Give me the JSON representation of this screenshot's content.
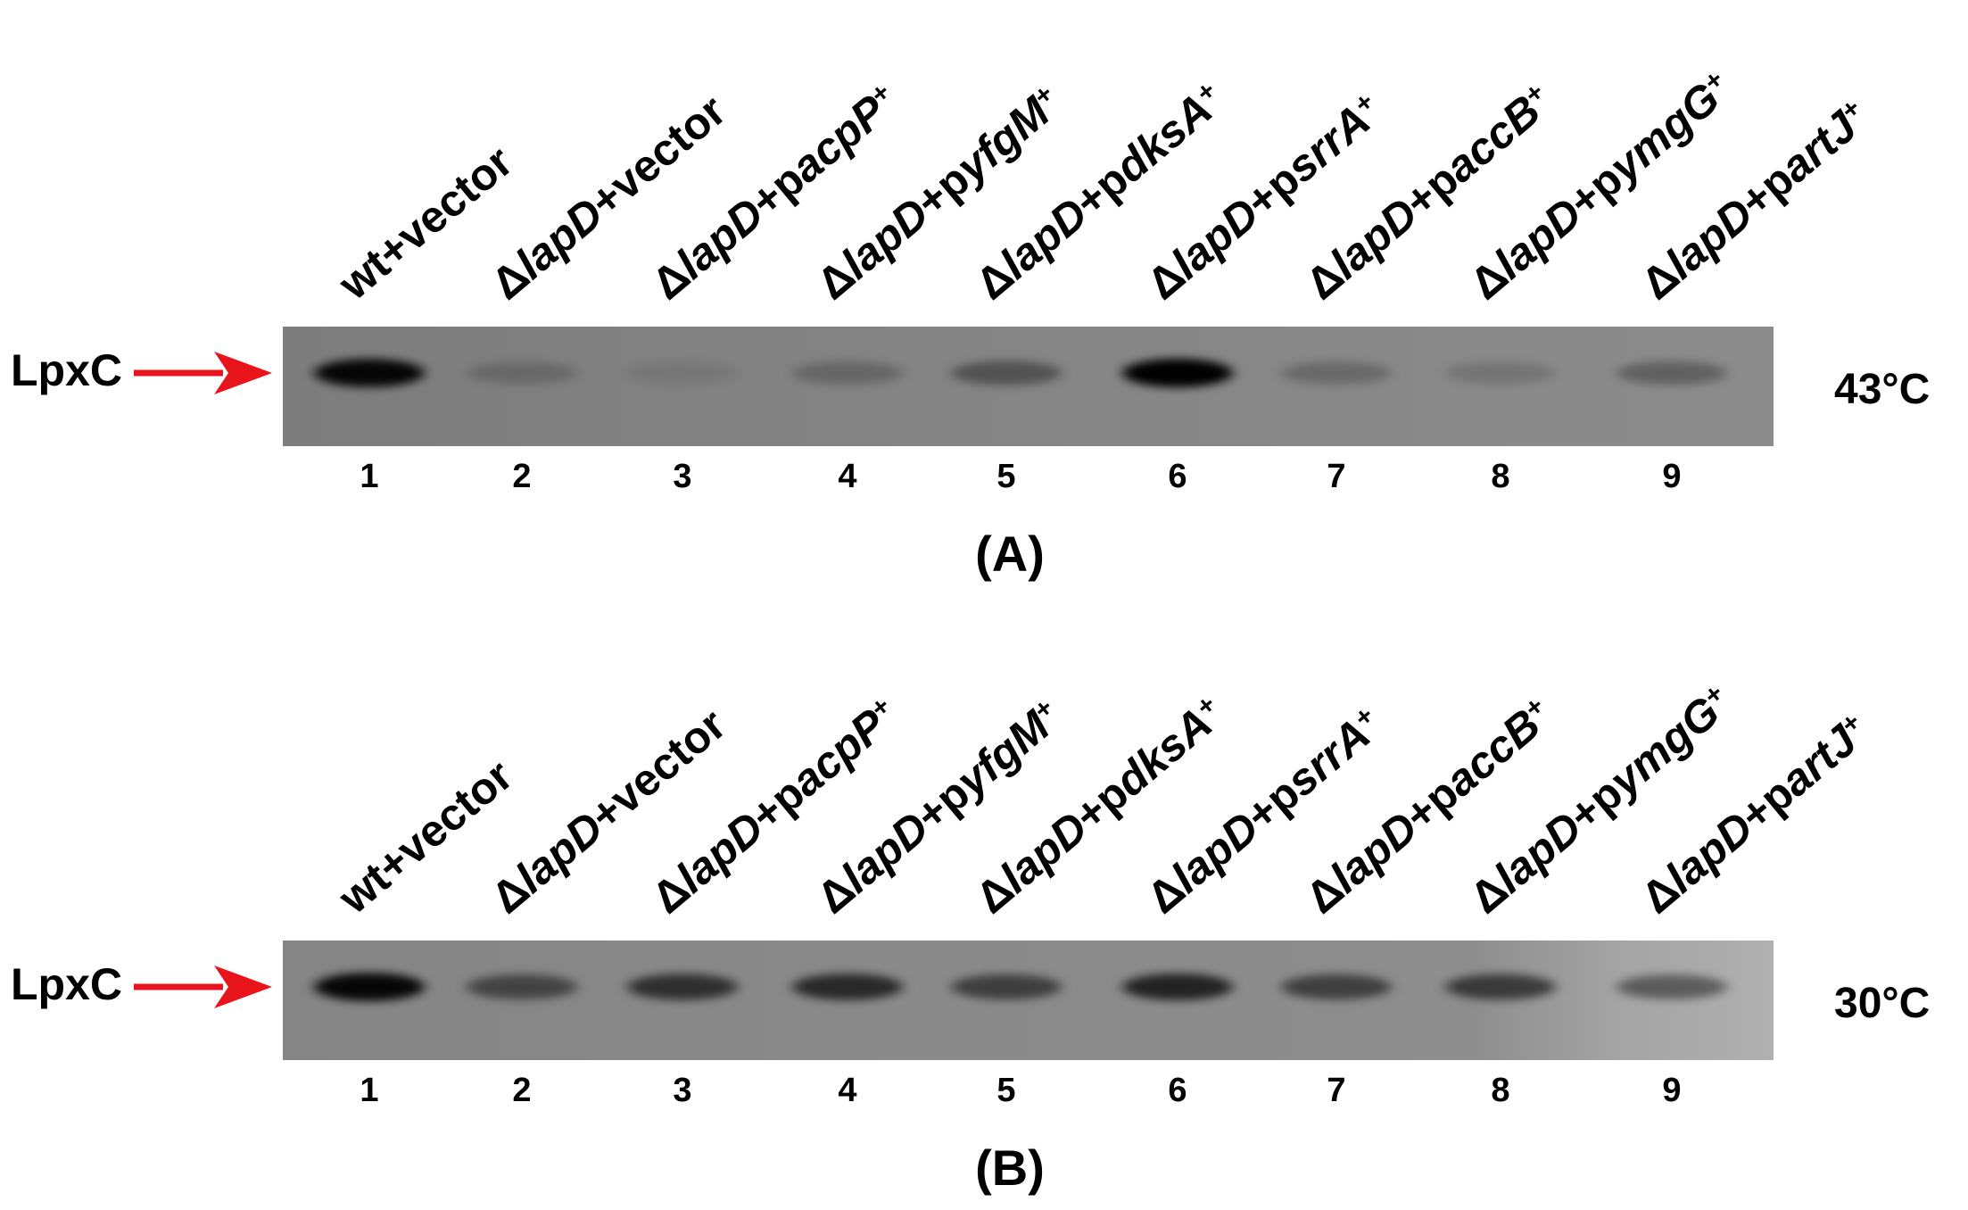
{
  "panels": [
    {
      "label": "(A)",
      "protein": "LpxC",
      "temperature": "43°C",
      "lanes": [
        {
          "number": "1",
          "name": [
            {
              "text": "wt+vector"
            }
          ]
        },
        {
          "number": "2",
          "name": [
            {
              "text": "Δ"
            },
            {
              "text": "lapD",
              "italic": true
            },
            {
              "text": "+vector"
            }
          ]
        },
        {
          "number": "3",
          "name": [
            {
              "text": "Δ"
            },
            {
              "text": "lapD",
              "italic": true
            },
            {
              "text": "+p"
            },
            {
              "text": "acpP",
              "italic": true
            },
            {
              "text": "+",
              "superscript": true
            }
          ]
        },
        {
          "number": "4",
          "name": [
            {
              "text": "Δ"
            },
            {
              "text": "lapD",
              "italic": true
            },
            {
              "text": "+p"
            },
            {
              "text": "yfgM",
              "italic": true
            },
            {
              "text": "+",
              "superscript": true
            }
          ]
        },
        {
          "number": "5",
          "name": [
            {
              "text": "Δ"
            },
            {
              "text": "lapD",
              "italic": true
            },
            {
              "text": "+p"
            },
            {
              "text": "dksA",
              "italic": true
            },
            {
              "text": "+",
              "superscript": true
            }
          ]
        },
        {
          "number": "6",
          "name": [
            {
              "text": "Δ"
            },
            {
              "text": "lapD",
              "italic": true
            },
            {
              "text": "+p"
            },
            {
              "text": "srrA",
              "italic": true
            },
            {
              "text": "+",
              "superscript": true
            }
          ]
        },
        {
          "number": "7",
          "name": [
            {
              "text": "Δ"
            },
            {
              "text": "lapD",
              "italic": true
            },
            {
              "text": "+p"
            },
            {
              "text": "accB",
              "italic": true
            },
            {
              "text": "+",
              "superscript": true
            }
          ]
        },
        {
          "number": "8",
          "name": [
            {
              "text": "Δ"
            },
            {
              "text": "lapD",
              "italic": true
            },
            {
              "text": "+p"
            },
            {
              "text": "ymgG",
              "italic": true
            },
            {
              "text": "+",
              "superscript": true
            }
          ]
        },
        {
          "number": "9",
          "name": [
            {
              "text": "Δ"
            },
            {
              "text": "lapD",
              "italic": true
            },
            {
              "text": "+p"
            },
            {
              "text": "artJ",
              "italic": true
            },
            {
              "text": "+",
              "superscript": true
            }
          ]
        }
      ]
    },
    {
      "label": "(B)",
      "protein": "LpxC",
      "temperature": "30°C",
      "lanes": [
        {
          "number": "1",
          "name": [
            {
              "text": "wt+vector"
            }
          ]
        },
        {
          "number": "2",
          "name": [
            {
              "text": "Δ"
            },
            {
              "text": "lapD",
              "italic": true
            },
            {
              "text": "+vector"
            }
          ]
        },
        {
          "number": "3",
          "name": [
            {
              "text": "Δ"
            },
            {
              "text": "lapD",
              "italic": true
            },
            {
              "text": "+p"
            },
            {
              "text": "acpP",
              "italic": true
            },
            {
              "text": "+",
              "superscript": true
            }
          ]
        },
        {
          "number": "4",
          "name": [
            {
              "text": "Δ"
            },
            {
              "text": "lapD",
              "italic": true
            },
            {
              "text": "+p"
            },
            {
              "text": "yfgM",
              "italic": true
            },
            {
              "text": "+",
              "superscript": true
            }
          ]
        },
        {
          "number": "5",
          "name": [
            {
              "text": "Δ"
            },
            {
              "text": "lapD",
              "italic": true
            },
            {
              "text": "+p"
            },
            {
              "text": "dksA",
              "italic": true
            },
            {
              "text": "+",
              "superscript": true
            }
          ]
        },
        {
          "number": "6",
          "name": [
            {
              "text": "Δ"
            },
            {
              "text": "lapD",
              "italic": true
            },
            {
              "text": "+p"
            },
            {
              "text": "srrA",
              "italic": true
            },
            {
              "text": "+",
              "superscript": true
            }
          ]
        },
        {
          "number": "7",
          "name": [
            {
              "text": "Δ"
            },
            {
              "text": "lapD",
              "italic": true
            },
            {
              "text": "+p"
            },
            {
              "text": "accB",
              "italic": true
            },
            {
              "text": "+",
              "superscript": true
            }
          ]
        },
        {
          "number": "8",
          "name": [
            {
              "text": "Δ"
            },
            {
              "text": "lapD",
              "italic": true
            },
            {
              "text": "+p"
            },
            {
              "text": "ymgG",
              "italic": true
            },
            {
              "text": "+",
              "superscript": true
            }
          ]
        },
        {
          "number": "9",
          "name": [
            {
              "text": "Δ"
            },
            {
              "text": "lapD",
              "italic": true
            },
            {
              "text": "+p"
            },
            {
              "text": "artJ",
              "italic": true
            },
            {
              "text": "+",
              "superscript": true
            }
          ]
        }
      ]
    }
  ]
}
